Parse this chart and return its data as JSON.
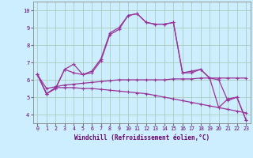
{
  "xlabel": "Windchill (Refroidissement éolien,°C)",
  "bg_color": "#cceeff",
  "grid_color": "#aaccbb",
  "line_color": "#993399",
  "xlim": [
    -0.5,
    23.5
  ],
  "ylim": [
    3.5,
    10.5
  ],
  "yticks": [
    4,
    5,
    6,
    7,
    8,
    9,
    10
  ],
  "xticks": [
    0,
    1,
    2,
    3,
    4,
    5,
    6,
    7,
    8,
    9,
    10,
    11,
    12,
    13,
    14,
    15,
    16,
    17,
    18,
    19,
    20,
    21,
    22,
    23
  ],
  "series1": [
    6.3,
    5.2,
    5.5,
    6.6,
    6.9,
    6.3,
    6.4,
    7.1,
    8.6,
    8.9,
    9.7,
    9.8,
    9.3,
    9.2,
    9.2,
    9.3,
    6.4,
    6.4,
    6.6,
    6.1,
    6.0,
    4.8,
    5.0,
    3.7
  ],
  "series2": [
    6.3,
    5.2,
    5.5,
    6.6,
    6.4,
    6.3,
    6.5,
    7.2,
    8.7,
    9.0,
    9.7,
    9.8,
    9.3,
    9.2,
    9.2,
    9.3,
    6.4,
    6.5,
    6.6,
    6.1,
    4.4,
    4.9,
    5.0,
    3.7
  ],
  "series3": [
    6.3,
    5.2,
    5.55,
    5.55,
    5.55,
    5.5,
    5.5,
    5.45,
    5.4,
    5.35,
    5.3,
    5.25,
    5.2,
    5.1,
    5.0,
    4.9,
    4.8,
    4.7,
    4.6,
    4.5,
    4.4,
    4.3,
    4.2,
    4.1
  ],
  "series4": [
    6.3,
    5.5,
    5.6,
    5.7,
    5.75,
    5.8,
    5.85,
    5.9,
    5.95,
    6.0,
    6.0,
    6.0,
    6.0,
    6.0,
    6.0,
    6.05,
    6.05,
    6.05,
    6.1,
    6.1,
    6.1,
    6.1,
    6.1,
    6.1
  ]
}
